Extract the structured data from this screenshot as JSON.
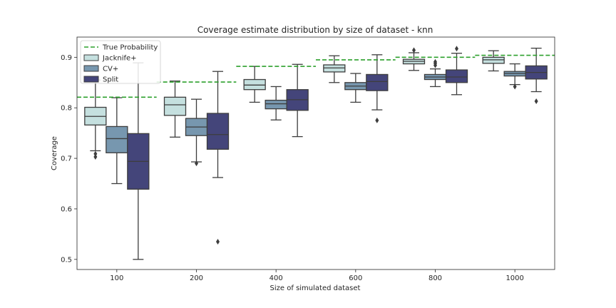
{
  "chart_data": {
    "type": "box",
    "title": "Coverage estimate distribution by size of dataset - knn",
    "xlabel": "Size of simulated dataset",
    "ylabel": "Coverage",
    "ylim": [
      0.48,
      0.94
    ],
    "yticks": [
      0.5,
      0.6,
      0.7,
      0.8,
      0.9
    ],
    "ytick_labels": [
      "0.5",
      "0.6",
      "0.7",
      "0.8",
      "0.9"
    ],
    "categories": [
      "100",
      "200",
      "400",
      "600",
      "800",
      "1000"
    ],
    "legend": {
      "placement": "top-left",
      "entries": [
        "True Probability",
        "Jacknife+",
        "CV+",
        "Split"
      ]
    },
    "true_probability": {
      "name": "True Probability",
      "color": "#2ca02c",
      "values": [
        0.821,
        0.851,
        0.882,
        0.895,
        0.9,
        0.904
      ]
    },
    "series": [
      {
        "name": "Jacknife+",
        "color": "#c5e0df",
        "boxes": [
          {
            "whisker_low": 0.715,
            "q1": 0.766,
            "median": 0.783,
            "q3": 0.801,
            "whisker_high": 0.855,
            "outliers": [
              0.703,
              0.709
            ]
          },
          {
            "whisker_low": 0.742,
            "q1": 0.785,
            "median": 0.806,
            "q3": 0.821,
            "whisker_high": 0.853,
            "outliers": []
          },
          {
            "whisker_low": 0.811,
            "q1": 0.836,
            "median": 0.845,
            "q3": 0.856,
            "whisker_high": 0.882,
            "outliers": []
          },
          {
            "whisker_low": 0.85,
            "q1": 0.871,
            "median": 0.879,
            "q3": 0.885,
            "whisker_high": 0.903,
            "outliers": []
          },
          {
            "whisker_low": 0.874,
            "q1": 0.887,
            "median": 0.892,
            "q3": 0.896,
            "whisker_high": 0.909,
            "outliers": [
              0.914
            ]
          },
          {
            "whisker_low": 0.873,
            "q1": 0.888,
            "median": 0.895,
            "q3": 0.9,
            "whisker_high": 0.913,
            "outliers": []
          }
        ]
      },
      {
        "name": "CV+",
        "color": "#7797af",
        "boxes": [
          {
            "whisker_low": 0.65,
            "q1": 0.711,
            "median": 0.739,
            "q3": 0.763,
            "whisker_high": 0.82,
            "outliers": []
          },
          {
            "whisker_low": 0.693,
            "q1": 0.745,
            "median": 0.762,
            "q3": 0.779,
            "whisker_high": 0.817,
            "outliers": [
              0.69
            ]
          },
          {
            "whisker_low": 0.776,
            "q1": 0.798,
            "median": 0.808,
            "q3": 0.815,
            "whisker_high": 0.842,
            "outliers": []
          },
          {
            "whisker_low": 0.811,
            "q1": 0.836,
            "median": 0.843,
            "q3": 0.85,
            "whisker_high": 0.868,
            "outliers": []
          },
          {
            "whisker_low": 0.842,
            "q1": 0.856,
            "median": 0.861,
            "q3": 0.866,
            "whisker_high": 0.877,
            "outliers": [
              0.884,
              0.888,
              0.891
            ]
          },
          {
            "whisker_low": 0.846,
            "q1": 0.863,
            "median": 0.868,
            "q3": 0.872,
            "whisker_high": 0.887,
            "outliers": [
              0.842
            ]
          }
        ]
      },
      {
        "name": "Split",
        "color": "#44457a",
        "boxes": [
          {
            "whisker_low": 0.5,
            "q1": 0.639,
            "median": 0.694,
            "q3": 0.749,
            "whisker_high": 0.889,
            "outliers": []
          },
          {
            "whisker_low": 0.662,
            "q1": 0.718,
            "median": 0.747,
            "q3": 0.789,
            "whisker_high": 0.872,
            "outliers": [
              0.535
            ]
          },
          {
            "whisker_low": 0.743,
            "q1": 0.795,
            "median": 0.816,
            "q3": 0.836,
            "whisker_high": 0.886,
            "outliers": []
          },
          {
            "whisker_low": 0.796,
            "q1": 0.834,
            "median": 0.852,
            "q3": 0.866,
            "whisker_high": 0.905,
            "outliers": [
              0.775
            ]
          },
          {
            "whisker_low": 0.826,
            "q1": 0.85,
            "median": 0.861,
            "q3": 0.875,
            "whisker_high": 0.908,
            "outliers": [
              0.917
            ]
          },
          {
            "whisker_low": 0.832,
            "q1": 0.857,
            "median": 0.87,
            "q3": 0.883,
            "whisker_high": 0.918,
            "outliers": [
              0.813
            ]
          }
        ]
      }
    ]
  }
}
